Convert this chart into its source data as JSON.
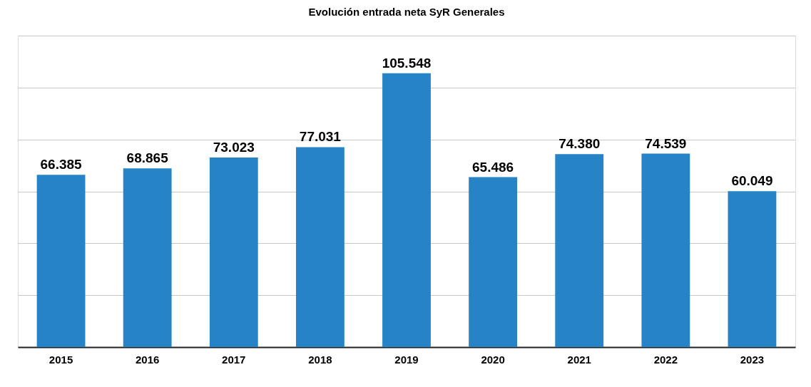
{
  "chart_data": {
    "type": "bar",
    "title": "Evolución entrada neta SyR Generales",
    "categories": [
      "2015",
      "2016",
      "2017",
      "2018",
      "2019",
      "2020",
      "2021",
      "2022",
      "2023"
    ],
    "values": [
      66385,
      68865,
      73023,
      77031,
      105548,
      65486,
      74380,
      74539,
      60049
    ],
    "value_labels": [
      "66.385",
      "68.865",
      "73.023",
      "77.031",
      "105.548",
      "65.486",
      "74.380",
      "74.539",
      "60.049"
    ],
    "color": "#2683c6",
    "ylim": [
      0,
      120000
    ],
    "yticks": [
      {
        "value": 0,
        "label": null
      },
      {
        "value": 20000,
        "label": null
      },
      {
        "value": 40000,
        "label": null
      },
      {
        "value": 60000,
        "label": null
      },
      {
        "value": 80000,
        "label": null
      },
      {
        "value": 100000,
        "label": null
      },
      {
        "value": 120000,
        "label": null
      }
    ],
    "tick_labels": "x",
    "grid": "y"
  }
}
